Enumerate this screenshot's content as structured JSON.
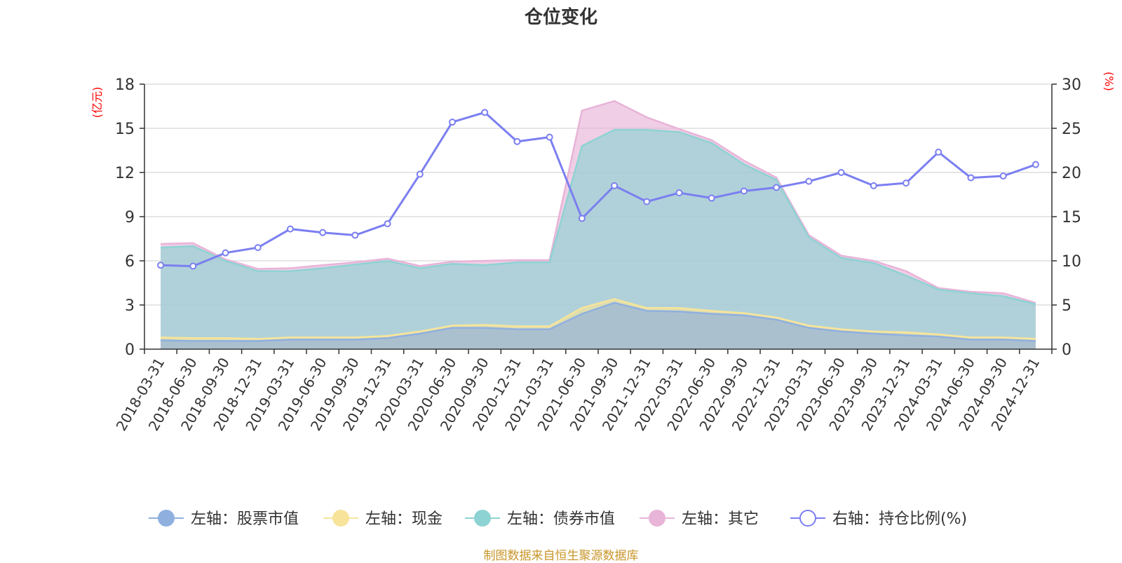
{
  "title": "仓位变化",
  "footer": "制图数据来自恒生聚源数据库",
  "colors": {
    "stock": "#8fb0df",
    "cash": "#f7e49a",
    "bond": "#8ed3d3",
    "other": "#e8b4d8",
    "ratio": "#7b7ff0",
    "unit": "#ff0000",
    "grid": "#cccccc",
    "axis": "#333333"
  },
  "chart_data": {
    "type": "area",
    "title": "仓位变化",
    "x": [
      "2018-03-31",
      "2018-06-30",
      "2018-09-30",
      "2018-12-31",
      "2019-03-31",
      "2019-06-30",
      "2019-09-30",
      "2019-12-31",
      "2020-03-31",
      "2020-06-30",
      "2020-09-30",
      "2020-12-31",
      "2021-03-31",
      "2021-06-30",
      "2021-09-30",
      "2021-12-31",
      "2022-03-31",
      "2022-06-30",
      "2022-09-30",
      "2022-12-31",
      "2023-03-31",
      "2023-06-30",
      "2023-09-30",
      "2023-12-31",
      "2024-03-31",
      "2024-06-30",
      "2024-09-30",
      "2024-12-31"
    ],
    "left_axis": {
      "label": "(亿元)",
      "ylim": [
        0,
        18
      ],
      "ticks": [
        0,
        3,
        6,
        9,
        12,
        15,
        18
      ]
    },
    "right_axis": {
      "label": "(%)",
      "ylim": [
        0,
        30
      ],
      "ticks": [
        0,
        5,
        10,
        15,
        20,
        25,
        30
      ]
    },
    "stacked": true,
    "series": [
      {
        "name": "左轴：股票市值",
        "axis": "left",
        "type": "area",
        "values": [
          0.6,
          0.55,
          0.55,
          0.55,
          0.65,
          0.65,
          0.65,
          0.75,
          1.05,
          1.45,
          1.45,
          1.35,
          1.35,
          2.4,
          3.15,
          2.6,
          2.55,
          2.4,
          2.3,
          2.0,
          1.45,
          1.2,
          1.05,
          0.95,
          0.85,
          0.65,
          0.65,
          0.55
        ]
      },
      {
        "name": "左轴：现金",
        "axis": "left",
        "type": "area",
        "values": [
          0.2,
          0.2,
          0.2,
          0.15,
          0.15,
          0.15,
          0.15,
          0.15,
          0.15,
          0.15,
          0.2,
          0.2,
          0.2,
          0.4,
          0.25,
          0.2,
          0.25,
          0.2,
          0.15,
          0.15,
          0.15,
          0.15,
          0.15,
          0.2,
          0.15,
          0.15,
          0.15,
          0.15
        ]
      },
      {
        "name": "左轴：债券市值",
        "axis": "left",
        "type": "area",
        "values": [
          6.1,
          6.25,
          5.25,
          4.6,
          4.5,
          4.7,
          4.95,
          5.1,
          4.3,
          4.2,
          4.05,
          4.35,
          4.35,
          11.0,
          11.5,
          12.1,
          11.95,
          11.4,
          10.1,
          9.35,
          6.0,
          4.85,
          4.65,
          3.85,
          3.05,
          3.0,
          2.8,
          2.35
        ]
      },
      {
        "name": "左轴：其它",
        "axis": "left",
        "type": "area",
        "values": [
          0.25,
          0.2,
          0.1,
          0.15,
          0.2,
          0.2,
          0.15,
          0.15,
          0.15,
          0.15,
          0.3,
          0.15,
          0.15,
          2.4,
          1.95,
          0.85,
          0.2,
          0.2,
          0.25,
          0.15,
          0.15,
          0.15,
          0.15,
          0.3,
          0.1,
          0.1,
          0.2,
          0.1
        ]
      },
      {
        "name": "右轴：持仓比例(%)",
        "axis": "right",
        "type": "line",
        "values": [
          9.5,
          9.4,
          10.9,
          11.5,
          13.6,
          13.2,
          12.9,
          14.2,
          19.8,
          25.7,
          26.8,
          23.5,
          24.0,
          14.8,
          18.5,
          16.7,
          17.7,
          17.1,
          17.9,
          18.3,
          19.0,
          20.0,
          18.5,
          18.8,
          22.3,
          19.4,
          19.6,
          20.9
        ]
      }
    ],
    "legend_position": "bottom-center",
    "grid": true
  }
}
